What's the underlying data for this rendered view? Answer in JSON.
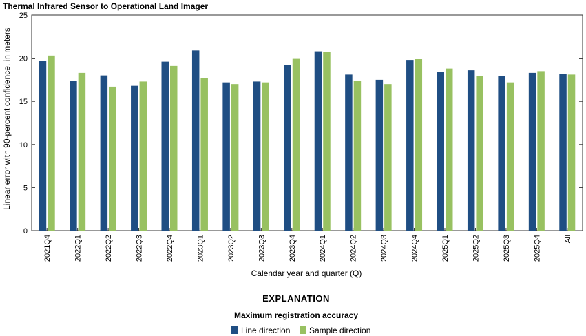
{
  "chart_data": {
    "type": "bar",
    "title": "Thermal Infrared Sensor to Operational Land Imager",
    "xlabel": "Calendar year and quarter (Q)",
    "ylabel": "Linear error with 90-percent confidence, in meters",
    "ylim": [
      0,
      25
    ],
    "yticks": [
      0,
      5,
      10,
      15,
      20,
      25
    ],
    "grid": false,
    "categories": [
      "2021Q4",
      "2022Q1",
      "2022Q2",
      "2022Q3",
      "2022Q4",
      "2023Q1",
      "2023Q2",
      "2023Q3",
      "2023Q4",
      "2024Q1",
      "2024Q2",
      "2024Q3",
      "2024Q4",
      "2025Q1",
      "2025Q2",
      "2025Q3",
      "2025Q4",
      "All"
    ],
    "series": [
      {
        "name": "Line direction",
        "color": "#1f4e83",
        "values": [
          19.7,
          17.4,
          18.0,
          16.8,
          19.6,
          20.9,
          17.2,
          17.3,
          19.2,
          20.8,
          18.1,
          17.5,
          19.8,
          18.4,
          18.6,
          17.9,
          18.3,
          18.2
        ]
      },
      {
        "name": "Sample direction",
        "color": "#98c161",
        "values": [
          20.3,
          18.3,
          16.7,
          17.3,
          19.1,
          17.7,
          17.0,
          17.2,
          20.0,
          20.7,
          17.4,
          17.0,
          19.9,
          18.8,
          17.9,
          17.2,
          18.5,
          18.1
        ]
      }
    ],
    "legend_placement": "bottom-center",
    "explanation_title": "EXPLANATION",
    "legend_title": "Maximum registration accuracy"
  }
}
